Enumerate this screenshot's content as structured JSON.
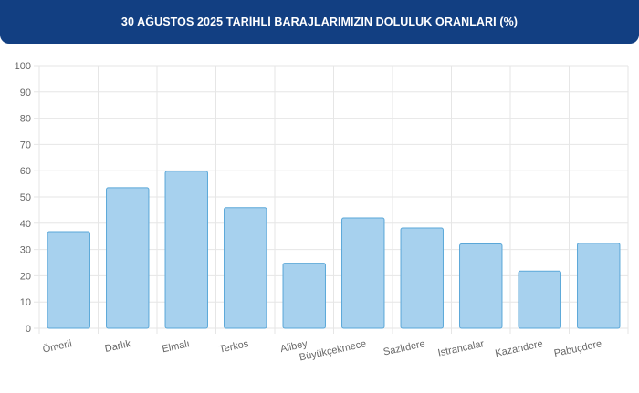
{
  "header": {
    "title": "30 AĞUSTOS 2025 TARİHLİ BARAJLARIMIZIN DOLULUK ORANLARI (%)"
  },
  "colors": {
    "header_bg": "#123f82",
    "bar_fill": "#a7d1ee",
    "bar_stroke": "#5aa7d8",
    "grid": "#e6e6e6",
    "tick_text": "#666666"
  },
  "chart_data": {
    "type": "bar",
    "categories": [
      "Ömerli",
      "Darlık",
      "Elmalı",
      "Terkos",
      "Alibey",
      "Büyükçekmece",
      "Sazlıdere",
      "Istrancalar",
      "Kazandere",
      "Pabuçdere"
    ],
    "values": [
      36.8,
      53.5,
      59.8,
      45.9,
      24.8,
      42.0,
      38.2,
      32.1,
      21.8,
      32.4
    ],
    "ylim": [
      0,
      100
    ],
    "yticks": [
      0,
      10,
      20,
      30,
      40,
      50,
      60,
      70,
      80,
      90,
      100
    ],
    "grid": true,
    "legend": "none"
  }
}
